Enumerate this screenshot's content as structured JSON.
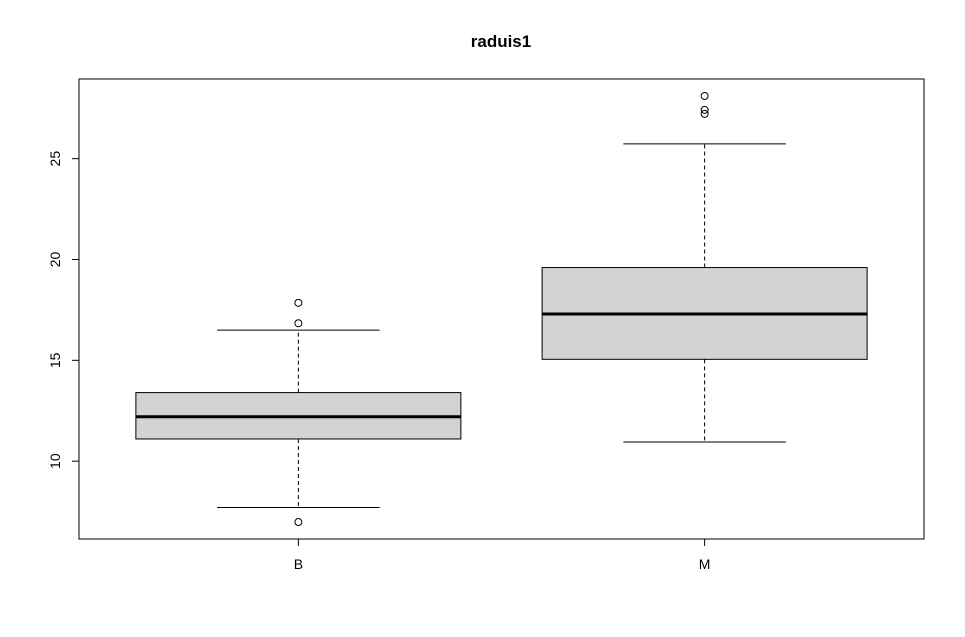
{
  "chart_data": {
    "type": "boxplot",
    "title": "raduis1",
    "xlabel": "",
    "ylabel": "",
    "categories": [
      "B",
      "M"
    ],
    "boxes": [
      {
        "category": "B",
        "whisker_low": 7.7,
        "q1": 11.1,
        "median": 12.2,
        "q3": 13.4,
        "whisker_high": 16.5,
        "outliers": [
          6.98,
          16.84,
          17.85
        ]
      },
      {
        "category": "M",
        "whisker_low": 10.95,
        "q1": 15.05,
        "median": 17.3,
        "q3": 19.6,
        "whisker_high": 25.73,
        "outliers": [
          27.22,
          27.42,
          28.11
        ]
      }
    ],
    "yticks": [
      10,
      15,
      20,
      25
    ],
    "ylim": [
      6.14,
      28.95
    ],
    "box_fill": "#d3d3d3",
    "grid": false,
    "legend": "none"
  }
}
